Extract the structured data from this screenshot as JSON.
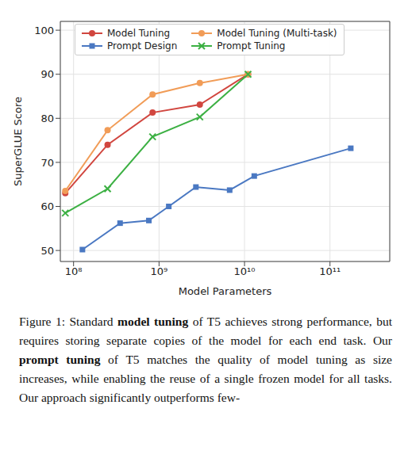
{
  "chart_data": {
    "type": "line",
    "log": "x",
    "grid": true,
    "legend": "upper left",
    "x_label": "Model Parameters",
    "y_label": "SuperGLUE Score",
    "xlim": [
      70000000,
      500000000000
    ],
    "xticks": [
      {
        "value": 100000000,
        "label": "10⁸"
      },
      {
        "value": 1000000000,
        "label": "10⁹"
      },
      {
        "value": 10000000000,
        "label": "10¹⁰"
      },
      {
        "value": 100000000000,
        "label": "10¹¹"
      }
    ],
    "ylim": [
      47.5,
      102
    ],
    "yticks": [
      50,
      60,
      70,
      80,
      90,
      100
    ],
    "series": [
      {
        "name": "Model Tuning",
        "color": "#d1463f",
        "marker": "circle",
        "line_style": "solid",
        "x": [
          80000000,
          250000000,
          840000000,
          3000000000,
          11000000000
        ],
        "values": [
          63,
          74,
          81.3,
          83.1,
          90
        ]
      },
      {
        "name": "Model Tuning (Multi-task)",
        "color": "#f19c57",
        "marker": "circle",
        "line_style": "solid",
        "x": [
          80000000,
          250000000,
          840000000,
          3000000000,
          11000000000
        ],
        "values": [
          63.5,
          77.3,
          85.4,
          88,
          90
        ]
      },
      {
        "name": "Prompt Design",
        "color": "#4a78c2",
        "marker": "square",
        "line_style": "solid",
        "x": [
          127000000,
          350000000,
          760000000,
          1300000000,
          2700000000,
          6700000000,
          13000000000,
          175000000000
        ],
        "values": [
          50.2,
          56.2,
          56.8,
          60,
          64.4,
          63.7,
          66.9,
          73.2
        ]
      },
      {
        "name": "Prompt Tuning",
        "color": "#3cb043",
        "marker": "x",
        "line_style": "solid",
        "x": [
          80000000,
          250000000,
          840000000,
          3000000000,
          11000000000
        ],
        "values": [
          58.5,
          64,
          75.8,
          80.3,
          90
        ]
      }
    ]
  },
  "caption": [
    {
      "text": "Figure 1: Standard ",
      "bold": false
    },
    {
      "text": "model tuning",
      "bold": true
    },
    {
      "text": " of T5 achieves strong performance, but requires storing separate copies of the model for each end task. Our ",
      "bold": false
    },
    {
      "text": "prompt tuning",
      "bold": true
    },
    {
      "text": " of T5 matches the quality of model tuning as size increases, while enabling the reuse of a single frozen model for all tasks. Our approach significantly outperforms few-",
      "bold": false
    }
  ]
}
